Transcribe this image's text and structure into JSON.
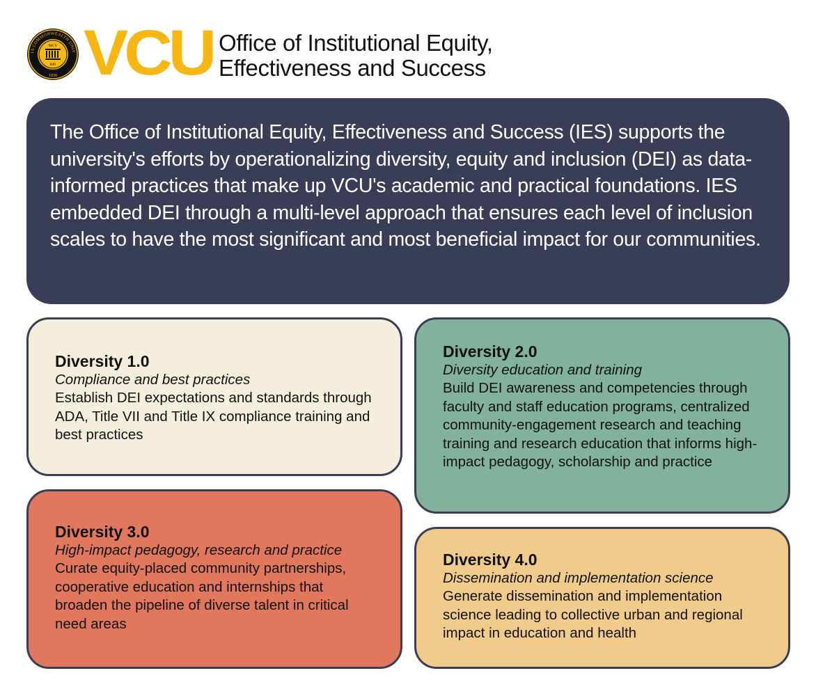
{
  "colors": {
    "brand_gold": "#f6b715",
    "intro_bg": "#3a3d56",
    "card_border": "#3a3d55",
    "diversity_1": "#f3efdc",
    "diversity_2": "#82b29b",
    "diversity_3": "#e1785e",
    "diversity_4": "#f1cb8c"
  },
  "header": {
    "logo_text": "VCU",
    "seal_icon": "vcu-seal-icon",
    "seal_text_ring": "VIRGINIA COMMONWEALTH UNIVERSITY",
    "seal_text_mcv": "MCV",
    "seal_text_rpi": "RPI",
    "seal_text_year": "1838",
    "office_line1": "Office of Institutional Equity,",
    "office_line2": "Effectiveness and Success"
  },
  "intro": {
    "text": "The Office of Institutional Equity, Effectiveness and Success (IES) supports the university's efforts by operationalizing diversity, equity and inclusion (DEI) as data-informed practices that make up VCU's academic and practical foundations. IES embedded DEI through a multi-level approach that ensures each level of inclusion scales to have the most significant and most beneficial impact for our communities."
  },
  "cards": [
    {
      "title": "Diversity 1.0",
      "subtitle": "Compliance and best practices",
      "body": "Establish DEI expectations and standards through ADA, Title VII and Title IX compliance training and best practices"
    },
    {
      "title": "Diversity 2.0",
      "subtitle": "Diversity education and training",
      "body": "Build DEI awareness and competencies through faculty and staff education programs, centralized community-engagement research and teaching training and research education that informs high-impact pedagogy, scholarship and practice"
    },
    {
      "title": "Diversity 3.0",
      "subtitle": "High-impact pedagogy, research and practice",
      "body": "Curate equity-placed community partnerships, cooperative education and internships that broaden the pipeline of diverse talent in critical need areas"
    },
    {
      "title": "Diversity 4.0",
      "subtitle": "Dissemination and implementation science",
      "body": "Generate dissemination and implementation science leading to collective urban and regional impact in education and health"
    }
  ]
}
